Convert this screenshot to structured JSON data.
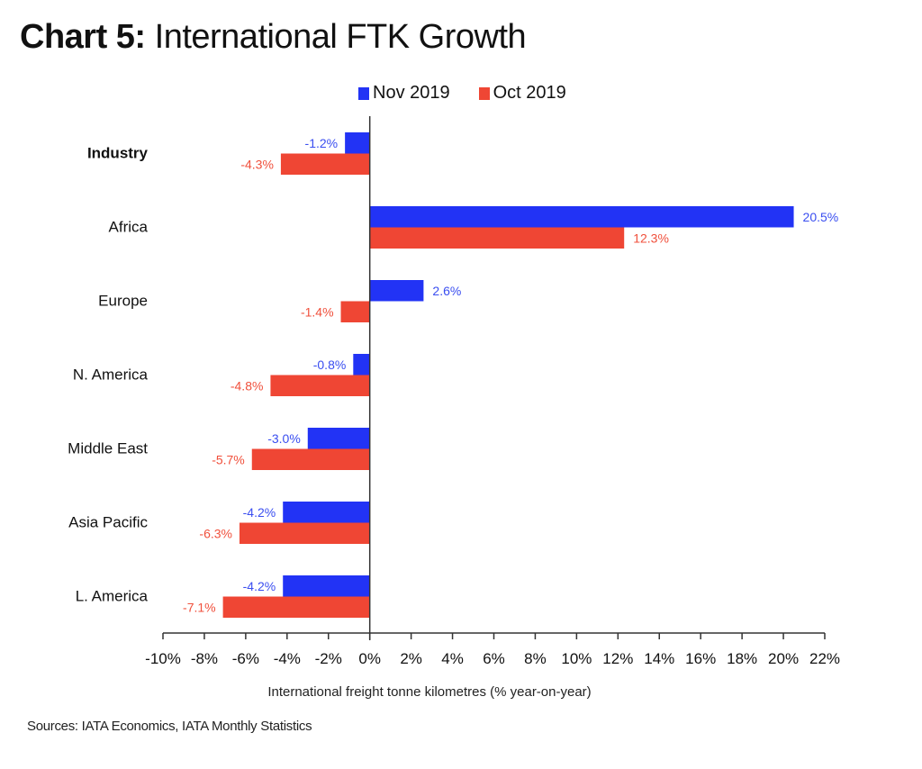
{
  "page": {
    "title_bold": "Chart 5:",
    "title_rest": " International FTK Growth",
    "source": "Sources: IATA Economics, IATA Monthly Statistics"
  },
  "chart_data": {
    "type": "bar",
    "orientation": "horizontal",
    "title": "Chart 5: International FTK Growth",
    "xlabel": "International freight tonne kilometres (% year-on-year)",
    "ylabel": "",
    "xlim": [
      -10,
      22
    ],
    "x_ticks": [
      -10,
      -8,
      -6,
      -4,
      -2,
      0,
      2,
      4,
      6,
      8,
      10,
      12,
      14,
      16,
      18,
      20,
      22
    ],
    "x_tick_labels": [
      "-10%",
      "-8%",
      "-6%",
      "-4%",
      "-2%",
      "0%",
      "2%",
      "4%",
      "6%",
      "8%",
      "10%",
      "12%",
      "14%",
      "16%",
      "18%",
      "20%",
      "22%"
    ],
    "grid": false,
    "legend_position": "top-center",
    "categories": [
      "Industry",
      "Africa",
      "Europe",
      "N. America",
      "Middle East",
      "Asia Pacific",
      "L. America"
    ],
    "bold_categories": [
      "Industry"
    ],
    "series": [
      {
        "name": "Nov 2019",
        "color": "#2233f5",
        "label_color": "#3a4ef0",
        "values": [
          -1.2,
          20.5,
          2.6,
          -0.8,
          -3.0,
          -4.2,
          -4.2
        ],
        "labels": [
          "-1.2%",
          "20.5%",
          "2.6%",
          "-0.8%",
          "-3.0%",
          "-4.2%",
          "-4.2%"
        ]
      },
      {
        "name": "Oct 2019",
        "color": "#ef4634",
        "label_color": "#f0503c",
        "values": [
          -4.3,
          12.3,
          -1.4,
          -4.8,
          -5.7,
          -6.3,
          -7.1
        ],
        "labels": [
          "-4.3%",
          "12.3%",
          "-1.4%",
          "-4.8%",
          "-5.7%",
          "-6.3%",
          "-7.1%"
        ]
      }
    ]
  }
}
